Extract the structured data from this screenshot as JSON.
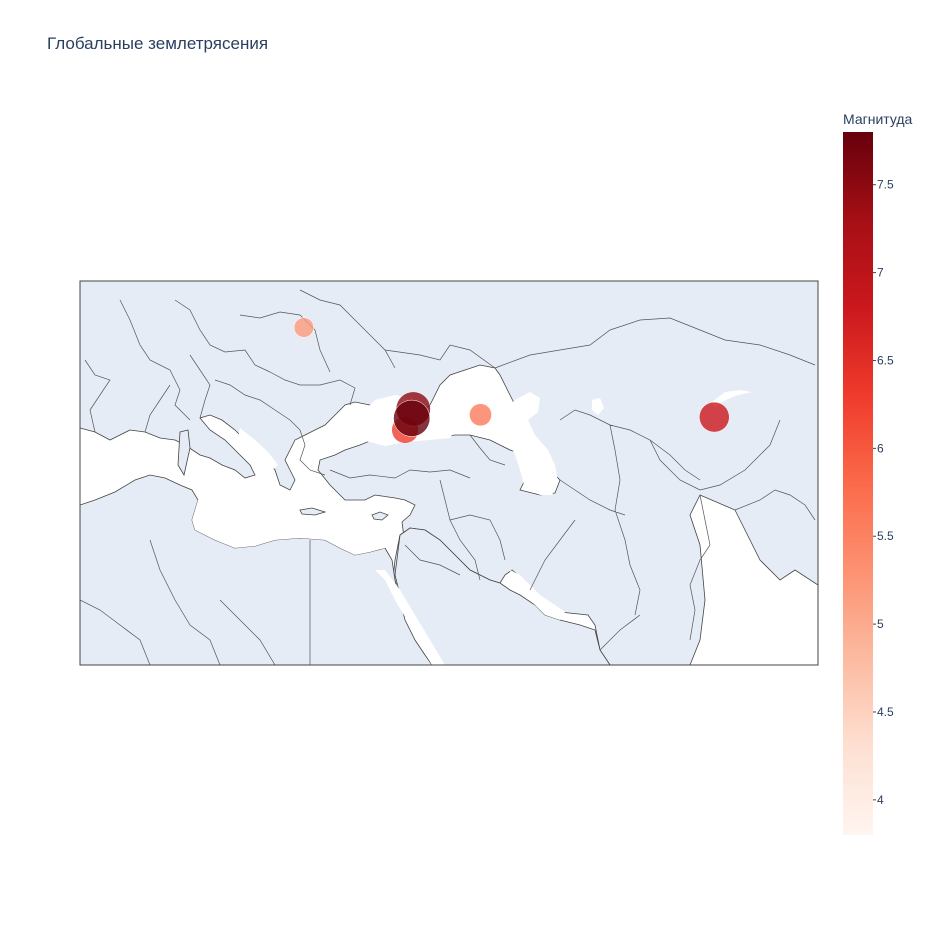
{
  "title": "Глобальные землетрясения",
  "colorbar": {
    "title": "Магнитуда",
    "min": 3.8,
    "max": 7.8,
    "ticks": [
      "4",
      "4.5",
      "5",
      "5.5",
      "6",
      "6.5",
      "7",
      "7.5"
    ],
    "colorscale": [
      "#fff5f0",
      "#fee0d2",
      "#fcbba1",
      "#fc9272",
      "#fb6a4a",
      "#ef3b2c",
      "#cb181d",
      "#a50f15",
      "#67000d"
    ]
  },
  "chart_data": {
    "type": "scatter",
    "map_type": "geo",
    "lon_range": [
      -3,
      86
    ],
    "lat_range": [
      16,
      49
    ],
    "points": [
      {
        "lon": 37.0,
        "lat": 37.2,
        "mag": 7.8
      },
      {
        "lon": 37.2,
        "lat": 38.0,
        "mag": 7.5
      },
      {
        "lon": 36.2,
        "lat": 36.2,
        "mag": 6.3
      },
      {
        "lon": 45.3,
        "lat": 37.5,
        "mag": 5.6
      },
      {
        "lon": 24.0,
        "lat": 45.0,
        "mag": 5.2
      },
      {
        "lon": 73.5,
        "lat": 37.3,
        "mag": 6.8
      }
    ]
  }
}
